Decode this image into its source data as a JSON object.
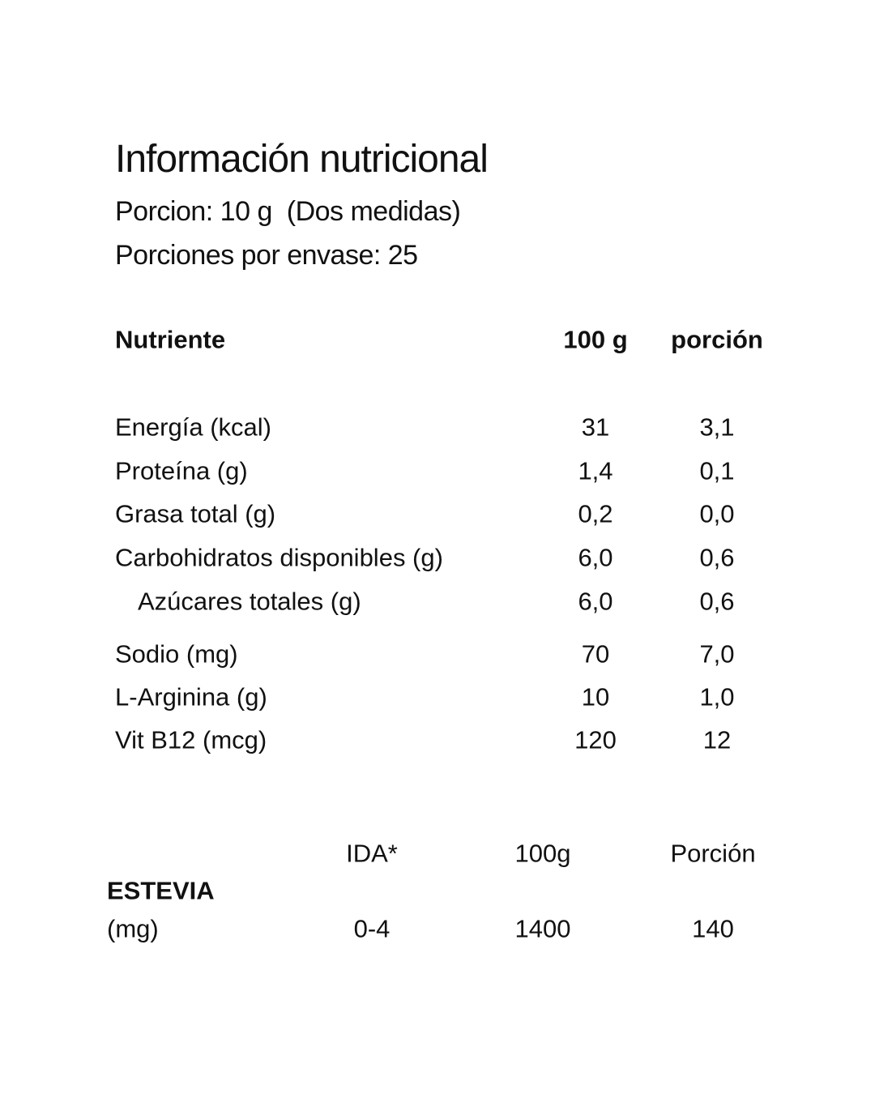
{
  "header": {
    "title": "Información nutricional",
    "serving": "Porcion: 10 g  (Dos medidas)",
    "servings_per_container": "Porciones por envase: 25"
  },
  "nutrition_table": {
    "columns": [
      "Nutriente",
      "100 g",
      "porción"
    ],
    "rows": [
      [
        "Energía (kcal)",
        "31",
        "3,1"
      ],
      [
        "Proteína (g)",
        "1,4",
        "0,1"
      ],
      [
        "Grasa total (g)",
        "0,2",
        "0,0"
      ],
      [
        "Carbohidratos disponibles (g)",
        "6,0",
        "0,6"
      ],
      [
        "Azúcares totales (g)",
        "6,0",
        "0,6"
      ],
      [
        "Sodio (mg)",
        "70",
        "7,0"
      ],
      [
        "L-Arginina (g)",
        "10",
        "1,0"
      ],
      [
        "Vit B12 (mcg)",
        "120",
        "12"
      ]
    ]
  },
  "stevia_table": {
    "columns": [
      "IDA*",
      "100g",
      "Porción"
    ],
    "label": "ESTEVIA",
    "unit": "(mg)",
    "values": [
      "0-4",
      "1400",
      "140"
    ]
  }
}
